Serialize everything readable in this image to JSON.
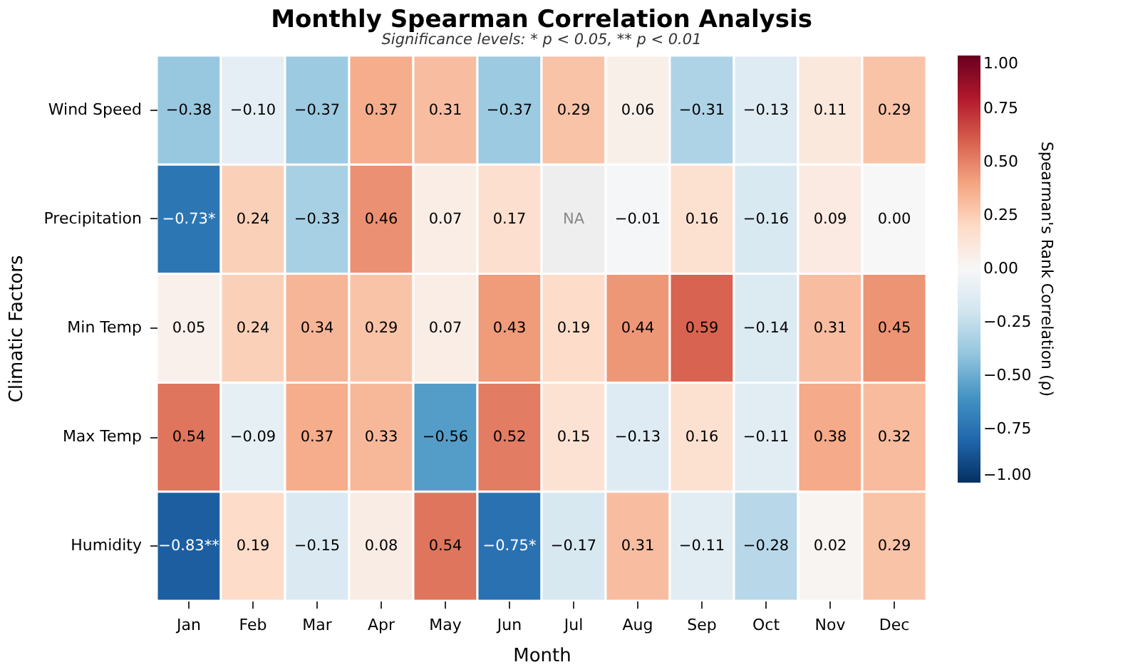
{
  "chart_data": {
    "type": "heatmap",
    "title": "Monthly Spearman Correlation Analysis",
    "subtitle": "Significance levels: * p < 0.05, ** p < 0.01",
    "xlabel": "Month",
    "ylabel": "Climatic Factors",
    "clabel": "Spearman's Rank Correlation (ρ)",
    "categories": [
      "Jan",
      "Feb",
      "Mar",
      "Apr",
      "May",
      "Jun",
      "Jul",
      "Aug",
      "Sep",
      "Oct",
      "Nov",
      "Dec"
    ],
    "y_categories": [
      "Wind Speed",
      "Precipitation",
      "Min Temp",
      "Max Temp",
      "Humidity"
    ],
    "cells": [
      [
        -0.38,
        -0.1,
        -0.37,
        0.37,
        0.31,
        -0.37,
        0.29,
        0.06,
        -0.31,
        -0.13,
        0.11,
        0.29
      ],
      [
        -0.73,
        0.24,
        -0.33,
        0.46,
        0.07,
        0.17,
        null,
        -0.01,
        0.16,
        -0.16,
        0.09,
        0.0
      ],
      [
        0.05,
        0.24,
        0.34,
        0.29,
        0.07,
        0.43,
        0.19,
        0.44,
        0.59,
        -0.14,
        0.31,
        0.45
      ],
      [
        0.54,
        -0.09,
        0.37,
        0.33,
        -0.56,
        0.52,
        0.15,
        -0.13,
        0.16,
        -0.11,
        0.38,
        0.32
      ],
      [
        -0.83,
        0.19,
        -0.15,
        0.08,
        0.54,
        -0.75,
        -0.17,
        0.31,
        -0.11,
        -0.28,
        0.02,
        0.29
      ]
    ],
    "cell_labels": [
      [
        "−0.38",
        "−0.10",
        "−0.37",
        "0.37",
        "0.31",
        "−0.37",
        "0.29",
        "0.06",
        "−0.31",
        "−0.13",
        "0.11",
        "0.29"
      ],
      [
        "−0.73*",
        "0.24",
        "−0.33",
        "0.46",
        "0.07",
        "0.17",
        "NA",
        "−0.01",
        "0.16",
        "−0.16",
        "0.09",
        "0.00"
      ],
      [
        "0.05",
        "0.24",
        "0.34",
        "0.29",
        "0.07",
        "0.43",
        "0.19",
        "0.44",
        "0.59",
        "−0.14",
        "0.31",
        "0.45"
      ],
      [
        "0.54",
        "−0.09",
        "0.37",
        "0.33",
        "−0.56",
        "0.52",
        "0.15",
        "−0.13",
        "0.16",
        "−0.11",
        "0.38",
        "0.32"
      ],
      [
        "−0.83**",
        "0.19",
        "−0.15",
        "0.08",
        "0.54",
        "−0.75*",
        "−0.17",
        "0.31",
        "−0.11",
        "−0.28",
        "0.02",
        "0.29"
      ]
    ],
    "clim": [
      -1,
      1
    ],
    "cticks": [
      {
        "value": -1,
        "label": "−1.00"
      },
      {
        "value": -0.75,
        "label": "−0.75"
      },
      {
        "value": -0.5,
        "label": "−0.50"
      },
      {
        "value": -0.25,
        "label": "−0.25"
      },
      {
        "value": 0,
        "label": "0.00"
      },
      {
        "value": 0.25,
        "label": "0.25"
      },
      {
        "value": 0.5,
        "label": "0.50"
      },
      {
        "value": 0.75,
        "label": "0.75"
      },
      {
        "value": 1,
        "label": "1.00"
      }
    ]
  }
}
